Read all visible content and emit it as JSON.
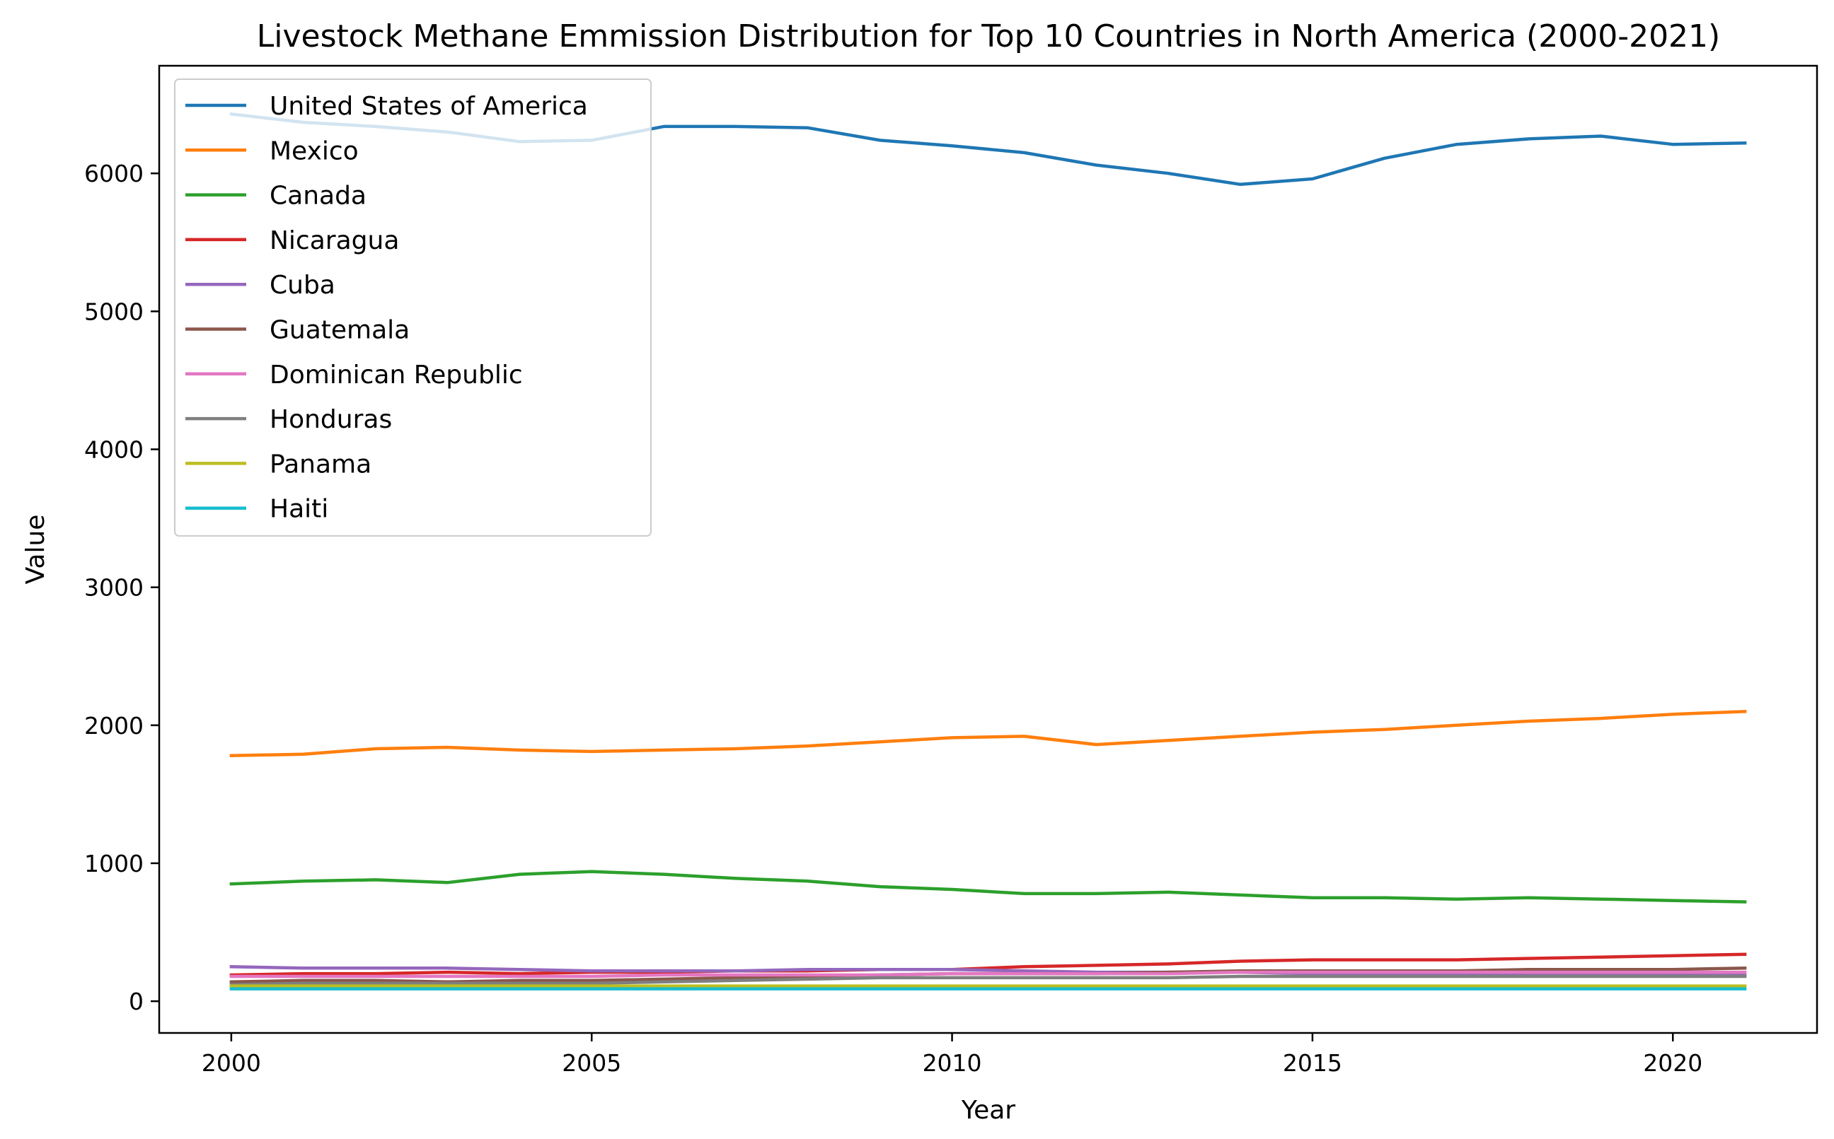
{
  "chart_data": {
    "type": "line",
    "title": "Livestock Methane Emmission Distribution for Top 10 Countries in North America (2000-2021)",
    "xlabel": "Year",
    "ylabel": "Value",
    "xlim": [
      1999,
      2022
    ],
    "ylim": [
      -230,
      6780
    ],
    "xticks": [
      2000,
      2005,
      2010,
      2015,
      2020
    ],
    "yticks": [
      0,
      1000,
      2000,
      3000,
      4000,
      5000,
      6000
    ],
    "grid": false,
    "legend_position": "top-left",
    "x": [
      2000,
      2001,
      2002,
      2003,
      2004,
      2005,
      2006,
      2007,
      2008,
      2009,
      2010,
      2011,
      2012,
      2013,
      2014,
      2015,
      2016,
      2017,
      2018,
      2019,
      2020,
      2021
    ],
    "series": [
      {
        "name": "United States of America",
        "color": "#1f77b4",
        "values": [
          6430,
          6370,
          6340,
          6300,
          6230,
          6240,
          6340,
          6340,
          6330,
          6240,
          6200,
          6150,
          6060,
          6000,
          5920,
          5960,
          6110,
          6210,
          6250,
          6270,
          6210,
          6220
        ]
      },
      {
        "name": "Mexico",
        "color": "#ff7f0e",
        "values": [
          1780,
          1790,
          1830,
          1840,
          1820,
          1810,
          1820,
          1830,
          1850,
          1880,
          1910,
          1920,
          1860,
          1890,
          1920,
          1950,
          1970,
          2000,
          2030,
          2050,
          2080,
          2100
        ]
      },
      {
        "name": "Canada",
        "color": "#2ca02c",
        "values": [
          850,
          870,
          880,
          860,
          920,
          940,
          920,
          890,
          870,
          830,
          810,
          780,
          780,
          790,
          770,
          750,
          750,
          740,
          750,
          740,
          730,
          720
        ]
      },
      {
        "name": "Nicaragua",
        "color": "#d62728",
        "values": [
          190,
          200,
          200,
          210,
          200,
          210,
          210,
          220,
          220,
          230,
          230,
          250,
          260,
          270,
          290,
          300,
          300,
          300,
          310,
          320,
          330,
          340
        ]
      },
      {
        "name": "Cuba",
        "color": "#9467bd",
        "values": [
          250,
          240,
          240,
          240,
          230,
          220,
          220,
          220,
          230,
          230,
          230,
          220,
          210,
          210,
          210,
          200,
          200,
          200,
          200,
          200,
          190,
          190
        ]
      },
      {
        "name": "Guatemala",
        "color": "#8c564b",
        "values": [
          140,
          150,
          150,
          140,
          150,
          150,
          160,
          170,
          180,
          190,
          200,
          200,
          200,
          210,
          220,
          220,
          220,
          220,
          230,
          230,
          230,
          240
        ]
      },
      {
        "name": "Dominican Republic",
        "color": "#e377c2",
        "values": [
          180,
          180,
          180,
          180,
          180,
          180,
          190,
          190,
          190,
          190,
          200,
          200,
          200,
          200,
          210,
          210,
          210,
          210,
          210,
          210,
          210,
          210
        ]
      },
      {
        "name": "Honduras",
        "color": "#7f7f7f",
        "values": [
          120,
          130,
          130,
          130,
          130,
          130,
          140,
          150,
          160,
          170,
          170,
          170,
          170,
          170,
          180,
          180,
          180,
          180,
          180,
          180,
          180,
          180
        ]
      },
      {
        "name": "Panama",
        "color": "#bcbd22",
        "values": [
          110,
          110,
          110,
          110,
          110,
          110,
          110,
          110,
          110,
          110,
          110,
          110,
          110,
          110,
          110,
          110,
          110,
          110,
          110,
          110,
          110,
          110
        ]
      },
      {
        "name": "Haiti",
        "color": "#17becf",
        "values": [
          90,
          90,
          90,
          90,
          90,
          90,
          90,
          90,
          90,
          90,
          90,
          90,
          90,
          90,
          90,
          90,
          90,
          90,
          90,
          90,
          90,
          90
        ]
      }
    ]
  }
}
